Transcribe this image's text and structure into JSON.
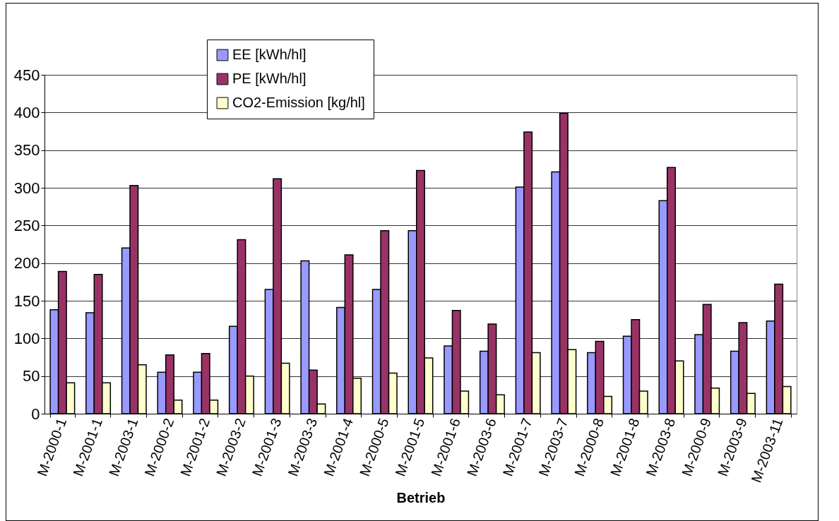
{
  "chart_data": {
    "type": "bar",
    "xlabel": "Betrieb",
    "categories": [
      "M-2000-1",
      "M-2001-1",
      "M-2003-1",
      "M-2000-2",
      "M-2001-2",
      "M-2003-2",
      "M-2001-3",
      "M-2003-3",
      "M-2001-4",
      "M-2000-5",
      "M-2001-5",
      "M-2001-6",
      "M-2003-6",
      "M-2001-7",
      "M-2003-7",
      "M-2000-8",
      "M-2001-8",
      "M-2003-8",
      "M-2000-9",
      "M-2003-9",
      "M-2003-11"
    ],
    "series": [
      {
        "name": "EE [kWh/hl]",
        "color": "#9999ff",
        "values": [
          138,
          134,
          220,
          55,
          55,
          116,
          165,
          203,
          141,
          165,
          243,
          90,
          83,
          301,
          321,
          81,
          103,
          283,
          105,
          83,
          123
        ]
      },
      {
        "name": "PE [kWh/hl]",
        "color": "#993366",
        "values": [
          189,
          185,
          303,
          78,
          80,
          231,
          312,
          58,
          211,
          243,
          323,
          137,
          119,
          374,
          399,
          96,
          125,
          327,
          145,
          121,
          172
        ]
      },
      {
        "name": "CO2-Emission [kg/hl]",
        "color": "#ffffcc",
        "values": [
          41,
          41,
          65,
          18,
          18,
          50,
          67,
          13,
          47,
          54,
          74,
          30,
          25,
          81,
          85,
          23,
          30,
          70,
          34,
          27,
          36
        ]
      }
    ],
    "ylim": [
      0,
      450
    ],
    "yticks": [
      0,
      50,
      100,
      150,
      200,
      250,
      300,
      350,
      400,
      450
    ],
    "grid": "y",
    "legend": "top"
  }
}
